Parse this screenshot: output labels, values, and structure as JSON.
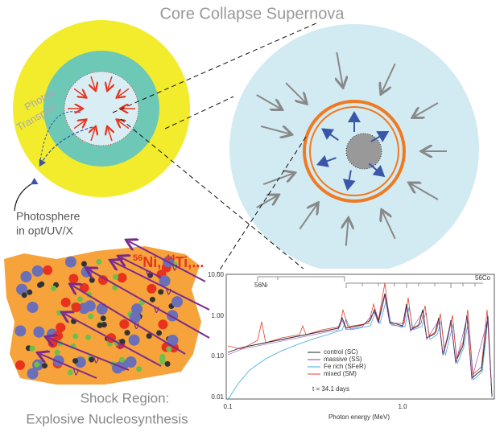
{
  "header": {
    "title": "Core Collapse Supernova"
  },
  "star": {
    "transport_label": [
      "Photon",
      "Transport"
    ],
    "photosphere_label": [
      "Photosphere",
      "in opt/UV/X"
    ]
  },
  "shock_region": {
    "isotope_label": [
      "56",
      "Ni, ",
      "44",
      "Ti,..."
    ],
    "neutrino_labels": [
      "ν",
      "ν",
      "ν",
      "ν",
      "ν",
      "ν",
      "ν",
      "ν"
    ],
    "caption": [
      "Shock Region:",
      "Explosive Nucleosynthesis"
    ]
  },
  "spectrum": {
    "line_labels": [
      "56Ni",
      "56Co"
    ],
    "yticks": [
      "10.00",
      "1.00",
      "0.10",
      "0.01"
    ],
    "xticks": [
      "0.1",
      "1.0"
    ],
    "x_label": "Photon energy (MeV)",
    "legend": [
      "control (SC)",
      "massive (SS)",
      "Fe rich (SFeR)",
      "mixed (SM)"
    ],
    "annotation": "t = 34.1 days"
  }
}
